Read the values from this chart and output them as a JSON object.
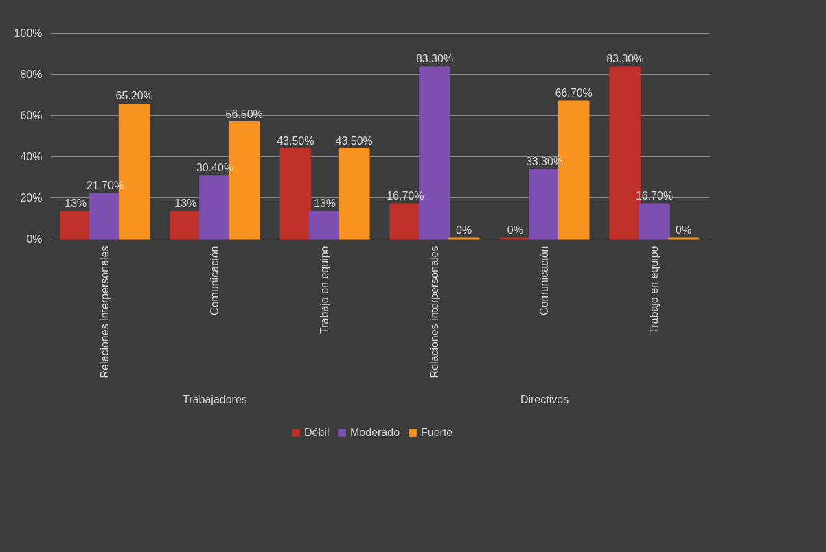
{
  "chart_data": {
    "type": "bar",
    "categories": [
      "Relaciones interpersonales",
      "Comunicación",
      "Trabajo en equipo",
      "Relaciones interpersonales",
      "Comunicación",
      "Trabajo en equipo"
    ],
    "series": [
      {
        "name": "Débil",
        "color": "#c0302b",
        "values": [
          13,
          13,
          43.5,
          16.7,
          0,
          83.3
        ],
        "value_labels": [
          "13%",
          "13%",
          "43.50%",
          "16.70%",
          "0%",
          "83.30%"
        ]
      },
      {
        "name": "Moderado",
        "color": "#7d4fb0",
        "values": [
          21.7,
          30.4,
          13,
          83.3,
          33.3,
          16.7
        ],
        "value_labels": [
          "21.70%",
          "30.40%",
          "13%",
          "83.30%",
          "33.30%",
          "16.70%"
        ]
      },
      {
        "name": "Fuerte",
        "color": "#f7931e",
        "values": [
          65.2,
          56.5,
          43.5,
          0,
          66.7,
          0
        ],
        "value_labels": [
          "65.20%",
          "56.50%",
          "43.50%",
          "0%",
          "66.70%",
          "0%"
        ]
      }
    ],
    "annotations": [
      "Trabajadores",
      "Directivos"
    ],
    "ylim": [
      0,
      100
    ],
    "yticks": [
      {
        "value": 0,
        "label": "0%"
      },
      {
        "value": 20,
        "label": "20%"
      },
      {
        "value": 40,
        "label": "40%"
      },
      {
        "value": 60,
        "label": "60%"
      },
      {
        "value": 80,
        "label": "80%"
      },
      {
        "value": 100,
        "label": "100%"
      }
    ],
    "grid": "y",
    "legend": "bottom"
  }
}
